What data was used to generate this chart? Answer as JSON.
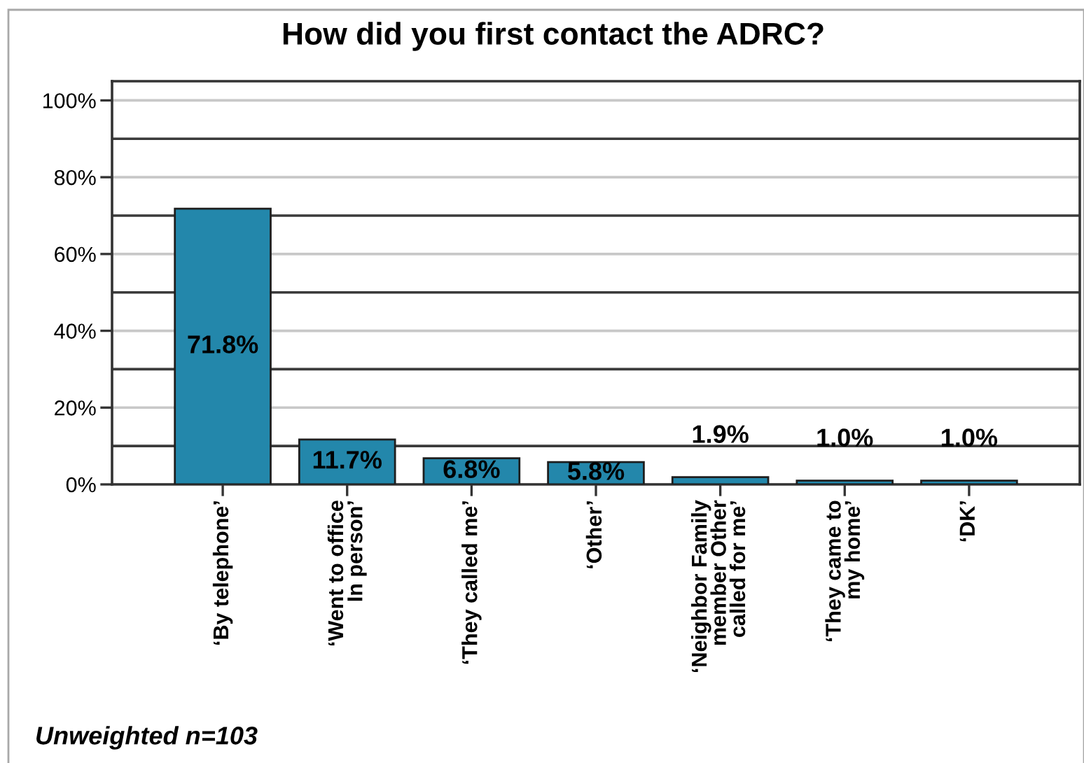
{
  "chart_data": {
    "type": "bar",
    "title": "How did you first contact the ADRC?",
    "categories": [
      "‘By telephone’",
      "‘Went to office\nIn person’",
      "‘They called me’",
      "‘Other’",
      "‘Neighbor Family\nmember Other\ncalled for me’",
      "‘They came to\nmy home’",
      "‘DK’"
    ],
    "values": [
      71.8,
      11.7,
      6.8,
      5.8,
      1.9,
      1.0,
      1.0
    ],
    "color": "#2387ab",
    "value_labels": [
      "71.8%",
      "11.7%",
      "6.8%",
      "5.8%",
      "1.9%",
      "1.0%",
      "1.0%"
    ],
    "ylim": [
      0,
      105
    ],
    "yticks": [
      {
        "value": 0,
        "label": "0%"
      },
      {
        "value": 20,
        "label": "20%"
      },
      {
        "value": 40,
        "label": "40%"
      },
      {
        "value": 60,
        "label": "60%"
      },
      {
        "value": 80,
        "label": "80%"
      },
      {
        "value": 100,
        "label": "100%"
      }
    ],
    "grid": "y",
    "ref_lines": [
      {
        "axis": "y",
        "value": 10,
        "color": "#3a3a3a"
      },
      {
        "axis": "y",
        "value": 30,
        "color": "#3a3a3a"
      },
      {
        "axis": "y",
        "value": 50,
        "color": "#3a3a3a"
      },
      {
        "axis": "y",
        "value": 70,
        "color": "#3a3a3a"
      },
      {
        "axis": "y",
        "value": 90,
        "color": "#3a3a3a"
      }
    ],
    "annotations": [
      "Unweighted n=103"
    ]
  }
}
